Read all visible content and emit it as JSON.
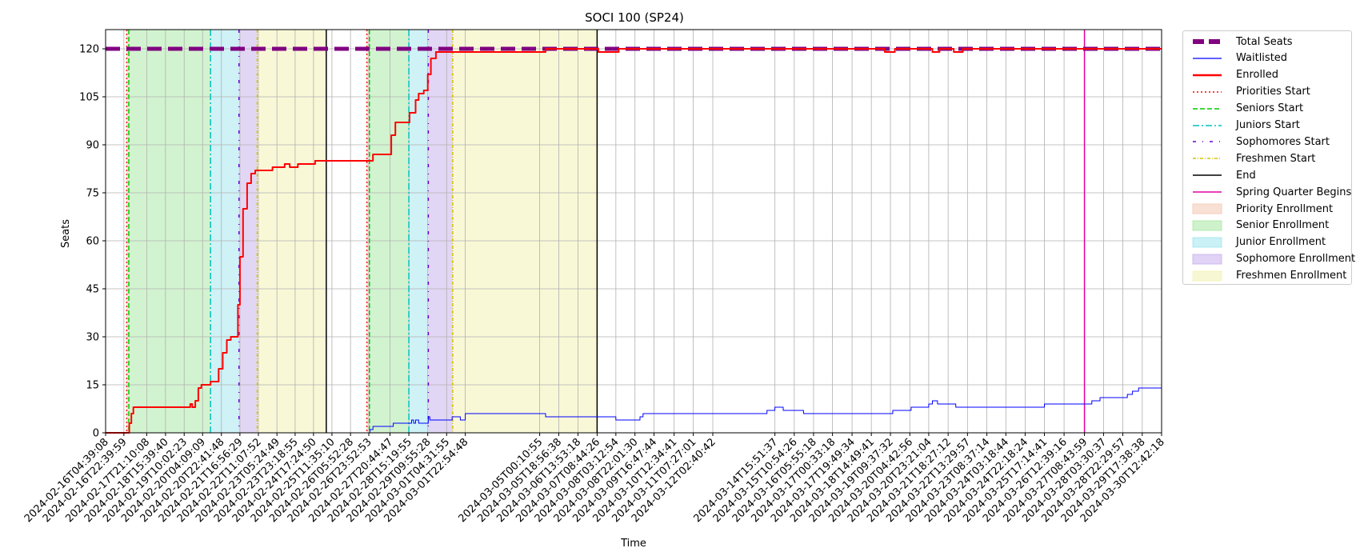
{
  "chart_data": {
    "type": "line",
    "title": "SOCI 100 (SP24)",
    "xlabel": "Time",
    "ylabel": "Seats",
    "ylim": [
      0,
      126
    ],
    "yticks": [
      0,
      15,
      30,
      45,
      60,
      75,
      90,
      105,
      120
    ],
    "x_range": [
      "2024-02-16T04:39:08",
      "2024-03-30T12:42:18"
    ],
    "xticks": [
      "2024-02-16T04:39:08",
      "2024-02-16T22:39:59",
      "2024-02-17T21:10:08",
      "2024-02-18T15:39:40",
      "2024-02-19T10:02:23",
      "2024-02-20T04:09:09",
      "2024-02-20T22:41:48",
      "2024-02-21T16:56:29",
      "2024-02-22T11:07:52",
      "2024-02-23T05:24:49",
      "2024-02-23T23:18:55",
      "2024-02-24T17:24:50",
      "2024-02-25T11:35:10",
      "2024-02-26T05:52:28",
      "2024-02-26T23:52:53",
      "2024-02-27T20:44:47",
      "2024-02-28T15:19:55",
      "2024-02-29T09:55:28",
      "2024-03-01T04:31:55",
      "2024-03-01T22:54:48",
      "2024-03-05T00:10:55",
      "2024-03-05T18:56:38",
      "2024-03-06T13:53:18",
      "2024-03-07T08:44:26",
      "2024-03-08T03:12:54",
      "2024-03-08T22:01:30",
      "2024-03-09T16:47:44",
      "2024-03-10T12:34:41",
      "2024-03-11T07:27:01",
      "2024-03-12T02:40:42",
      "2024-03-14T15:51:37",
      "2024-03-15T10:54:26",
      "2024-03-16T05:55:18",
      "2024-03-17T00:33:18",
      "2024-03-17T19:49:34",
      "2024-03-18T14:49:41",
      "2024-03-19T09:37:32",
      "2024-03-20T04:42:56",
      "2024-03-20T23:21:04",
      "2024-03-21T18:27:12",
      "2024-03-22T13:29:57",
      "2024-03-23T08:37:14",
      "2024-03-24T03:18:44",
      "2024-03-24T22:18:24",
      "2024-03-25T17:14:41",
      "2024-03-26T12:39:16",
      "2024-03-27T08:43:59",
      "2024-03-28T03:30:37",
      "2024-03-28T22:29:57",
      "2024-03-29T17:38:38",
      "2024-03-30T12:42:18"
    ],
    "grid": true,
    "legend_placement": "outside upper right",
    "series": [
      {
        "name": "Total Seats",
        "color": "#800080",
        "style": "dashed-thick",
        "points": [
          [
            "2024-02-16T04:39:08",
            120
          ],
          [
            "2024-03-30T12:42:18",
            120
          ]
        ]
      },
      {
        "name": "Waitlisted",
        "color": "#0000ff",
        "style": "solid-thin",
        "points": [
          [
            "2024-02-16T04:39:08",
            0
          ],
          [
            "2024-02-26T23:52:53",
            0
          ],
          [
            "2024-02-27T01:00:00",
            1
          ],
          [
            "2024-02-27T04:00:00",
            2
          ],
          [
            "2024-02-27T20:44:47",
            2
          ],
          [
            "2024-02-28T00:00:00",
            3
          ],
          [
            "2024-02-28T15:19:55",
            3
          ],
          [
            "2024-02-28T18:00:00",
            4
          ],
          [
            "2024-02-28T20:00:00",
            3
          ],
          [
            "2024-02-28T22:00:00",
            4
          ],
          [
            "2024-02-29T01:00:00",
            3
          ],
          [
            "2024-02-29T09:55:28",
            3
          ],
          [
            "2024-02-29T10:30:00",
            5
          ],
          [
            "2024-02-29T12:00:00",
            4
          ],
          [
            "2024-03-01T08:00:00",
            4
          ],
          [
            "2024-03-01T10:00:00",
            5
          ],
          [
            "2024-03-01T18:00:00",
            4
          ],
          [
            "2024-03-01T22:54:48",
            6
          ],
          [
            "2024-03-05T06:00:00",
            5
          ],
          [
            "2024-03-07T08:44:26",
            5
          ],
          [
            "2024-03-08T00:00:00",
            5
          ],
          [
            "2024-03-08T03:12:54",
            4
          ],
          [
            "2024-03-08T22:01:30",
            4
          ],
          [
            "2024-03-09T03:00:00",
            5
          ],
          [
            "2024-03-09T06:00:00",
            6
          ],
          [
            "2024-03-12T02:40:42",
            6
          ],
          [
            "2024-03-14T08:00:00",
            7
          ],
          [
            "2024-03-14T15:51:37",
            8
          ],
          [
            "2024-03-15T00:00:00",
            7
          ],
          [
            "2024-03-15T10:54:26",
            7
          ],
          [
            "2024-03-15T20:00:00",
            6
          ],
          [
            "2024-03-19T09:37:32",
            6
          ],
          [
            "2024-03-19T12:00:00",
            7
          ],
          [
            "2024-03-20T06:00:00",
            8
          ],
          [
            "2024-03-20T23:21:04",
            9
          ],
          [
            "2024-03-21T03:00:00",
            10
          ],
          [
            "2024-03-21T08:00:00",
            9
          ],
          [
            "2024-03-22T02:00:00",
            8
          ],
          [
            "2024-03-23T08:37:14",
            8
          ],
          [
            "2024-03-25T12:00:00",
            8
          ],
          [
            "2024-03-25T17:14:41",
            9
          ],
          [
            "2024-03-27T08:43:59",
            9
          ],
          [
            "2024-03-27T16:00:00",
            10
          ],
          [
            "2024-03-28T00:00:00",
            11
          ],
          [
            "2024-03-28T22:29:57",
            11
          ],
          [
            "2024-03-29T03:00:00",
            12
          ],
          [
            "2024-03-29T08:00:00",
            13
          ],
          [
            "2024-03-29T14:00:00",
            14
          ],
          [
            "2024-03-30T12:42:18",
            14
          ]
        ]
      },
      {
        "name": "Enrolled",
        "color": "#ff0000",
        "style": "solid-thick",
        "points": [
          [
            "2024-02-16T04:39:08",
            0
          ],
          [
            "2024-02-17T03:00:00",
            0
          ],
          [
            "2024-02-17T04:00:00",
            3
          ],
          [
            "2024-02-17T06:00:00",
            6
          ],
          [
            "2024-02-17T08:00:00",
            8
          ],
          [
            "2024-02-19T14:00:00",
            8
          ],
          [
            "2024-02-19T16:00:00",
            9
          ],
          [
            "2024-02-19T18:00:00",
            8
          ],
          [
            "2024-02-19T21:00:00",
            10
          ],
          [
            "2024-02-20T00:00:00",
            14
          ],
          [
            "2024-02-20T03:00:00",
            15
          ],
          [
            "2024-02-20T10:00:00",
            15
          ],
          [
            "2024-02-20T12:00:00",
            16
          ],
          [
            "2024-02-20T16:00:00",
            16
          ],
          [
            "2024-02-20T20:00:00",
            20
          ],
          [
            "2024-02-21T00:00:00",
            25
          ],
          [
            "2024-02-21T04:00:00",
            29
          ],
          [
            "2024-02-21T08:00:00",
            30
          ],
          [
            "2024-02-21T13:00:00",
            30
          ],
          [
            "2024-02-21T15:00:00",
            40
          ],
          [
            "2024-02-21T16:56:29",
            55
          ],
          [
            "2024-02-21T20:00:00",
            70
          ],
          [
            "2024-02-22T00:00:00",
            78
          ],
          [
            "2024-02-22T04:00:00",
            81
          ],
          [
            "2024-02-22T08:00:00",
            82
          ],
          [
            "2024-02-22T20:00:00",
            82
          ],
          [
            "2024-02-23T01:00:00",
            83
          ],
          [
            "2024-02-23T11:00:00",
            83
          ],
          [
            "2024-02-23T13:00:00",
            84
          ],
          [
            "2024-02-23T18:00:00",
            83
          ],
          [
            "2024-02-24T02:00:00",
            84
          ],
          [
            "2024-02-24T17:24:50",
            84
          ],
          [
            "2024-02-24T19:00:00",
            85
          ],
          [
            "2024-02-27T00:00:00",
            85
          ],
          [
            "2024-02-27T04:00:00",
            87
          ],
          [
            "2024-02-27T16:00:00",
            87
          ],
          [
            "2024-02-27T22:00:00",
            93
          ],
          [
            "2024-02-28T02:00:00",
            97
          ],
          [
            "2024-02-28T12:00:00",
            97
          ],
          [
            "2024-02-28T16:00:00",
            100
          ],
          [
            "2024-02-28T22:00:00",
            104
          ],
          [
            "2024-02-29T01:00:00",
            106
          ],
          [
            "2024-02-29T06:00:00",
            107
          ],
          [
            "2024-02-29T09:55:28",
            112
          ],
          [
            "2024-02-29T13:00:00",
            117
          ],
          [
            "2024-02-29T18:00:00",
            119
          ],
          [
            "2024-03-01T22:54:48",
            119
          ],
          [
            "2024-03-05T00:10:55",
            119
          ],
          [
            "2024-03-05T06:00:00",
            120
          ],
          [
            "2024-03-07T08:44:26",
            120
          ],
          [
            "2024-03-07T10:00:00",
            119
          ],
          [
            "2024-03-08T03:12:54",
            119
          ],
          [
            "2024-03-08T06:00:00",
            120
          ],
          [
            "2024-03-19T02:00:00",
            120
          ],
          [
            "2024-03-19T04:00:00",
            119
          ],
          [
            "2024-03-19T14:00:00",
            120
          ],
          [
            "2024-03-21T03:00:00",
            119
          ],
          [
            "2024-03-21T10:00:00",
            120
          ],
          [
            "2024-03-22T00:00:00",
            119
          ],
          [
            "2024-03-22T09:00:00",
            120
          ],
          [
            "2024-03-30T12:42:18",
            120
          ]
        ]
      }
    ],
    "vertical_lines": [
      {
        "name": "Priorities Start",
        "color": "#ff0000",
        "style": "dotted",
        "at": [
          "2024-02-17T01:30:00",
          "2024-02-26T22:00:00"
        ]
      },
      {
        "name": "Seniors Start",
        "color": "#00cc00",
        "style": "dashed",
        "at": [
          "2024-02-17T03:30:00",
          "2024-02-27T00:30:00"
        ]
      },
      {
        "name": "Juniors Start",
        "color": "#00c0c0",
        "style": "dashdot",
        "at": [
          "2024-02-20T12:00:00",
          "2024-02-28T15:19:55"
        ]
      },
      {
        "name": "Sophomores Start",
        "color": "#6a00d0",
        "style": "loosedashdot",
        "at": [
          "2024-02-21T16:00:00",
          "2024-02-29T10:30:00"
        ]
      },
      {
        "name": "Freshmen Start",
        "color": "#d4c400",
        "style": "dashdot-thin",
        "at": [
          "2024-02-22T10:00:00",
          "2024-03-01T10:30:00"
        ]
      },
      {
        "name": "End",
        "color": "#000000",
        "style": "solid",
        "at": [
          "2024-02-25T06:00:00",
          "2024-03-07T08:44:26"
        ]
      },
      {
        "name": "Spring Quarter Begins",
        "color": "#e0009f",
        "style": "solid",
        "at": [
          "2024-03-27T08:43:59"
        ]
      }
    ],
    "shaded_regions": [
      {
        "name": "Priority Enrollment",
        "color": "#f4c7b0",
        "spans": [
          [
            "2024-02-17T01:30:00",
            "2024-02-17T03:30:00"
          ],
          [
            "2024-02-26T22:00:00",
            "2024-02-27T00:30:00"
          ]
        ]
      },
      {
        "name": "Senior Enrollment",
        "color": "#a6e8a0",
        "spans": [
          [
            "2024-02-17T03:30:00",
            "2024-02-20T12:00:00"
          ],
          [
            "2024-02-27T00:30:00",
            "2024-02-28T15:19:55"
          ]
        ]
      },
      {
        "name": "Junior Enrollment",
        "color": "#9de6ee",
        "spans": [
          [
            "2024-02-20T12:00:00",
            "2024-02-21T16:00:00"
          ],
          [
            "2024-02-28T15:19:55",
            "2024-02-29T10:30:00"
          ]
        ]
      },
      {
        "name": "Sophomore Enrollment",
        "color": "#c6aeec",
        "spans": [
          [
            "2024-02-21T16:00:00",
            "2024-02-22T10:00:00"
          ],
          [
            "2024-02-29T10:30:00",
            "2024-03-01T10:30:00"
          ]
        ]
      },
      {
        "name": "Freshmen Enrollment",
        "color": "#f2f1b0",
        "spans": [
          [
            "2024-02-22T10:00:00",
            "2024-02-25T06:00:00"
          ],
          [
            "2024-03-01T10:30:00",
            "2024-03-07T08:44:26"
          ]
        ]
      }
    ]
  }
}
